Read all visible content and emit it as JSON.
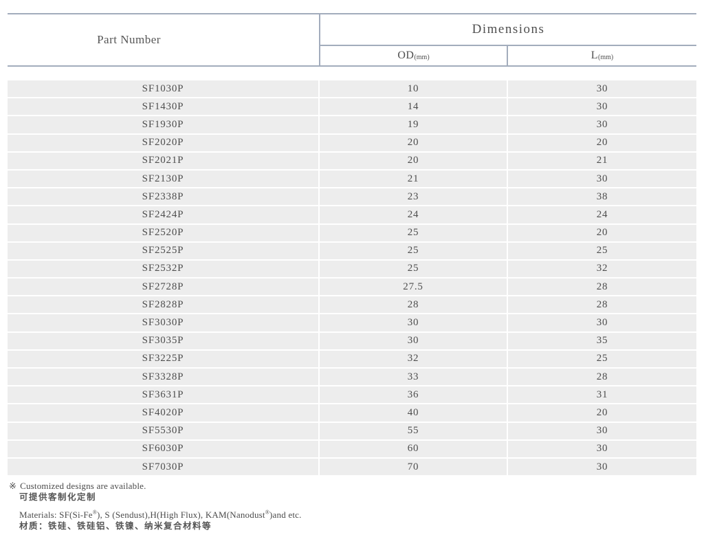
{
  "colors": {
    "border": "#a2acbc",
    "row_background": "#ededed",
    "text": "#4d4d4d"
  },
  "table": {
    "part_header": "Part Number",
    "dims_header": "Dimensions",
    "od_label": "OD",
    "od_unit": "(mm)",
    "l_label": "L",
    "l_unit": "(mm)",
    "rows": [
      {
        "part": "SF1030P",
        "od": "10",
        "l": "30"
      },
      {
        "part": "SF1430P",
        "od": "14",
        "l": "30"
      },
      {
        "part": "SF1930P",
        "od": "19",
        "l": "30"
      },
      {
        "part": "SF2020P",
        "od": "20",
        "l": "20"
      },
      {
        "part": "SF2021P",
        "od": "20",
        "l": "21"
      },
      {
        "part": "SF2130P",
        "od": "21",
        "l": "30"
      },
      {
        "part": "SF2338P",
        "od": "23",
        "l": "38"
      },
      {
        "part": "SF2424P",
        "od": "24",
        "l": "24"
      },
      {
        "part": "SF2520P",
        "od": "25",
        "l": "20"
      },
      {
        "part": "SF2525P",
        "od": "25",
        "l": "25"
      },
      {
        "part": "SF2532P",
        "od": "25",
        "l": "32"
      },
      {
        "part": "SF2728P",
        "od": "27.5",
        "l": "28"
      },
      {
        "part": "SF2828P",
        "od": "28",
        "l": "28"
      },
      {
        "part": "SF3030P",
        "od": "30",
        "l": "30"
      },
      {
        "part": "SF3035P",
        "od": "30",
        "l": "35"
      },
      {
        "part": "SF3225P",
        "od": "32",
        "l": "25"
      },
      {
        "part": "SF3328P",
        "od": "33",
        "l": "28"
      },
      {
        "part": "SF3631P",
        "od": "36",
        "l": "31"
      },
      {
        "part": "SF4020P",
        "od": "40",
        "l": "20"
      },
      {
        "part": "SF5530P",
        "od": "55",
        "l": "30"
      },
      {
        "part": "SF6030P",
        "od": "60",
        "l": "30"
      },
      {
        "part": "SF7030P",
        "od": "70",
        "l": "30"
      }
    ]
  },
  "notes": {
    "mark": "※",
    "custom_en": "Customized designs are available.",
    "custom_cn": "可提供客制化定制",
    "materials": {
      "seg1": "Materials: SF(Si-Fe",
      "sup1": "®",
      "seg2": "), S (Sendust),H(High Flux), KAM(Nanodust",
      "sup2": "®",
      "seg3": ")and etc."
    },
    "materials_cn": "材质：铁硅、铁硅铝、铁镍、纳米复合材料等"
  }
}
